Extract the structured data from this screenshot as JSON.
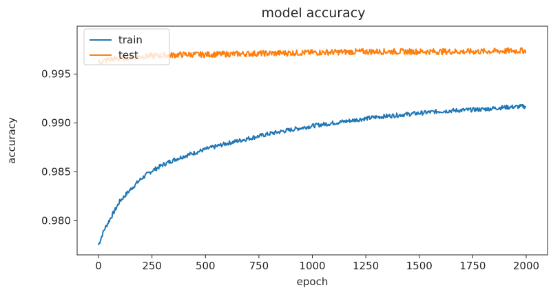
{
  "chart_data": {
    "type": "line",
    "title": "model accuracy",
    "xlabel": "epoch",
    "ylabel": "accuracy",
    "xlim": [
      -100,
      2100
    ],
    "ylim": [
      0.9765,
      0.9999
    ],
    "xticks": [
      0,
      250,
      500,
      750,
      1000,
      1250,
      1500,
      1750,
      2000
    ],
    "xtick_labels": [
      "0",
      "250",
      "500",
      "750",
      "1000",
      "1250",
      "1500",
      "1750",
      "2000"
    ],
    "yticks": [
      0.98,
      0.985,
      0.99,
      0.995
    ],
    "ytick_labels": [
      "0.980",
      "0.985",
      "0.990",
      "0.995"
    ],
    "grid": false,
    "legend_position": "upper-left",
    "series": [
      {
        "name": "train",
        "color": "#1f77b4",
        "x": [
          0,
          25,
          50,
          75,
          100,
          150,
          200,
          250,
          300,
          350,
          400,
          500,
          600,
          700,
          800,
          900,
          1000,
          1100,
          1200,
          1300,
          1400,
          1500,
          1600,
          1700,
          1800,
          1900,
          2000
        ],
        "values": [
          0.9775,
          0.979,
          0.98,
          0.981,
          0.982,
          0.9832,
          0.9843,
          0.9851,
          0.9857,
          0.9862,
          0.9866,
          0.9873,
          0.9879,
          0.9884,
          0.9889,
          0.9893,
          0.9897,
          0.99,
          0.9903,
          0.9906,
          0.9908,
          0.991,
          0.9912,
          0.9913,
          0.9914,
          0.9916,
          0.9917
        ]
      },
      {
        "name": "test",
        "color": "#ff7f0e",
        "x": [
          0,
          50,
          100,
          200,
          300,
          400,
          500,
          750,
          1000,
          1250,
          1500,
          1750,
          2000
        ],
        "values": [
          0.9962,
          0.9965,
          0.9966,
          0.9968,
          0.9969,
          0.997,
          0.997,
          0.9971,
          0.9972,
          0.9973,
          0.9973,
          0.9973,
          0.9974
        ]
      }
    ]
  }
}
